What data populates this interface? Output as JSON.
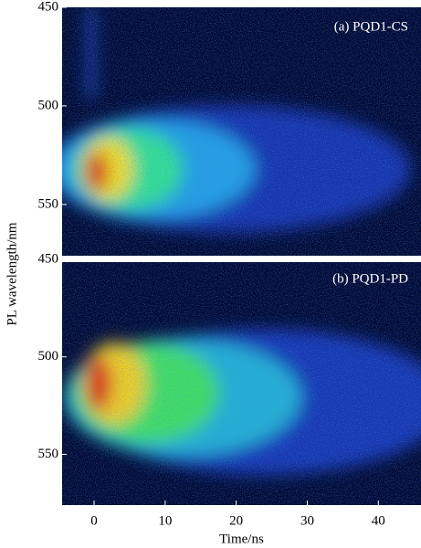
{
  "chart_data": [
    {
      "type": "heatmap",
      "title": "(a) PQD1-CS",
      "ylabel": "PL wavelength/nm",
      "ylim": [
        450,
        576
      ],
      "yticks": [
        450,
        500,
        550
      ],
      "y_inverted": true
    },
    {
      "type": "heatmap",
      "title": "(b) PQD1-PD",
      "xlabel": "Time/ns",
      "xlim": [
        -4.5,
        46
      ],
      "xticks": [
        0,
        10,
        20,
        30,
        40
      ],
      "ylim": [
        450,
        576
      ],
      "yticks": [
        450,
        500,
        550
      ],
      "y_inverted": true
    }
  ]
}
